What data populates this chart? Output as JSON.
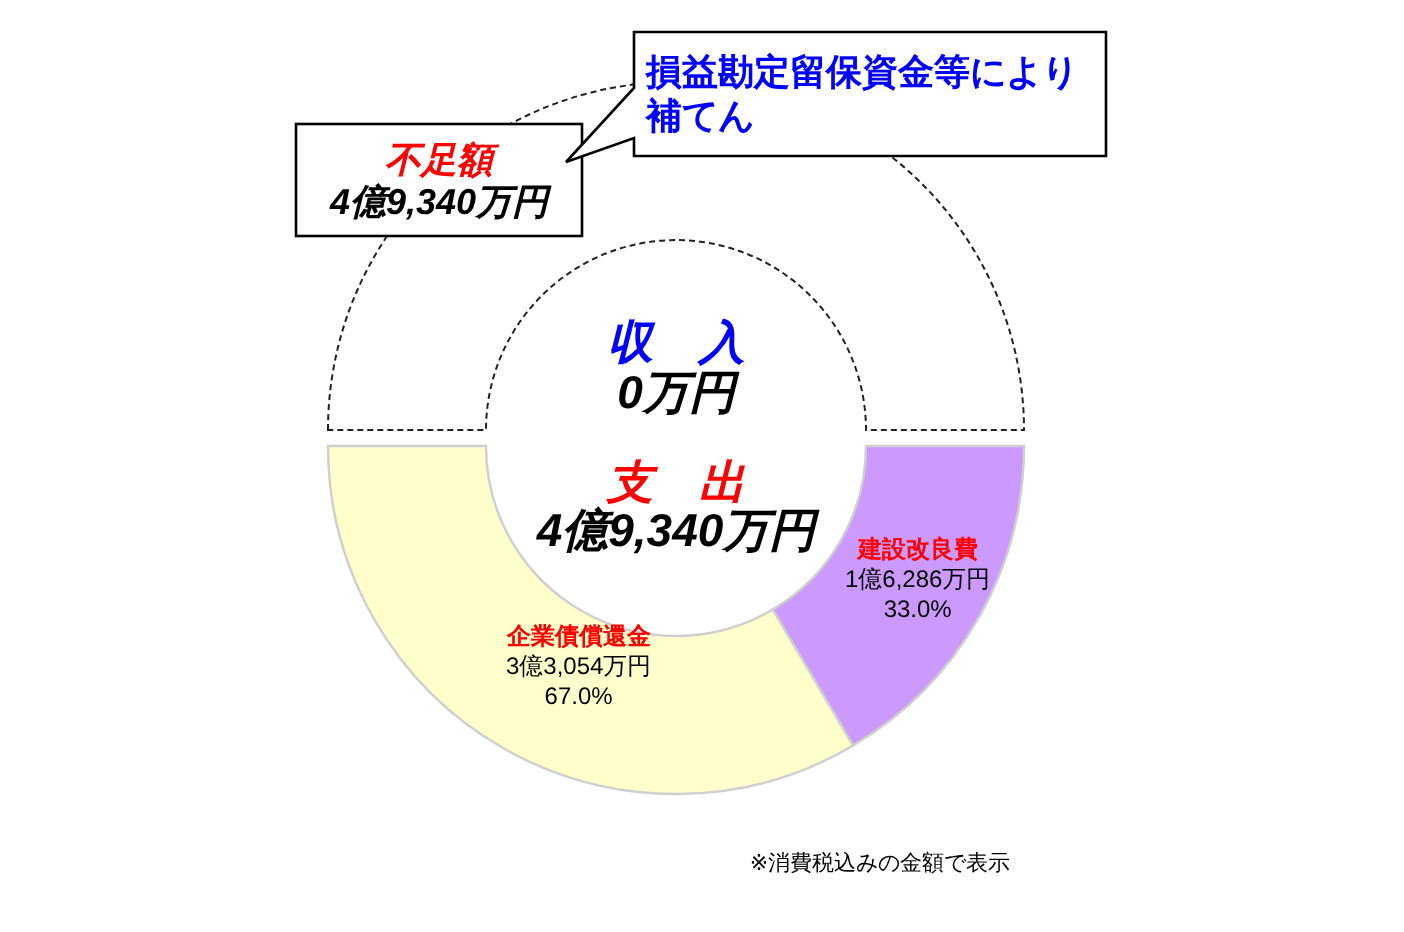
{
  "chart_data": {
    "type": "donut",
    "categories": [
      "建設改良費",
      "企業債償還金"
    ],
    "values": [
      33.0,
      67.0
    ],
    "colors": [
      "#cc99ff",
      "#ffffcc"
    ],
    "value_labels": [
      "1億6,286万円\n33.0%",
      "3億3,054万円\n67.0%"
    ],
    "annotations": [
      "収　入",
      "0万円",
      "支　出",
      "4億9,340万円",
      "不足額",
      "4億9,340万円",
      "損益勘定留保資金等により補てん",
      "※消費税込みの金額で表示"
    ]
  }
}
